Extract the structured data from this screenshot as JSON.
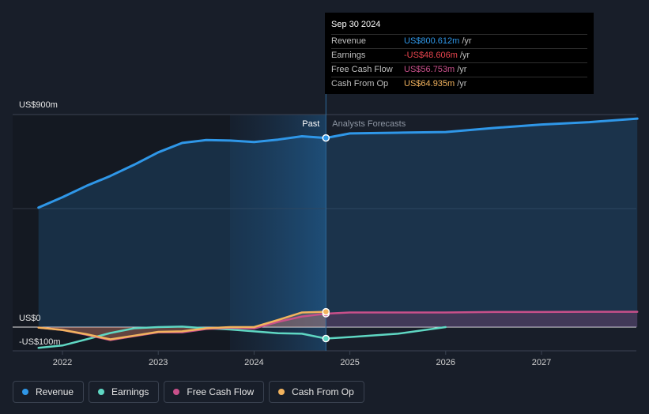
{
  "chart_data": {
    "type": "line",
    "y_axis_labels": [
      "US$900m",
      "US$0",
      "-US$100m"
    ],
    "ylim": [
      -100,
      900
    ],
    "x_tick_labels": [
      "2022",
      "2023",
      "2024",
      "2025",
      "2026",
      "2027"
    ],
    "x_tick_years": [
      2022,
      2023,
      2024,
      2025,
      2026,
      2027
    ],
    "divider_x": 2024.75,
    "past_label": "Past",
    "forecast_label": "Analysts Forecasts",
    "series": [
      {
        "name": "Revenue",
        "color": "#2f97e8",
        "fill": true,
        "points": [
          [
            2021.75,
            506
          ],
          [
            2022.0,
            550
          ],
          [
            2022.25,
            598
          ],
          [
            2022.5,
            640
          ],
          [
            2022.75,
            688
          ],
          [
            2023.0,
            740
          ],
          [
            2023.25,
            780
          ],
          [
            2023.5,
            792
          ],
          [
            2023.75,
            790
          ],
          [
            2024.0,
            784
          ],
          [
            2024.25,
            794
          ],
          [
            2024.5,
            808
          ],
          [
            2024.75,
            801
          ],
          [
            2025.0,
            820
          ],
          [
            2025.5,
            823
          ],
          [
            2026.0,
            826
          ],
          [
            2026.5,
            843
          ],
          [
            2027.0,
            858
          ],
          [
            2027.5,
            868
          ],
          [
            2028.0,
            883
          ]
        ]
      },
      {
        "name": "Earnings",
        "color": "#5fd7c3",
        "fill": false,
        "points": [
          [
            2021.75,
            -88
          ],
          [
            2022.0,
            -78
          ],
          [
            2022.25,
            -52
          ],
          [
            2022.5,
            -25
          ],
          [
            2022.75,
            -5
          ],
          [
            2023.0,
            0
          ],
          [
            2023.25,
            2
          ],
          [
            2023.5,
            -5
          ],
          [
            2023.75,
            -10
          ],
          [
            2024.0,
            -18
          ],
          [
            2024.25,
            -26
          ],
          [
            2024.5,
            -28
          ],
          [
            2024.75,
            -48.606
          ],
          [
            2025.0,
            -42
          ],
          [
            2025.5,
            -28
          ],
          [
            2026.0,
            0
          ]
        ]
      },
      {
        "name": "Free Cash Flow",
        "color": "#c8508a",
        "fill": true,
        "points": [
          [
            2021.75,
            -2
          ],
          [
            2022.0,
            -12
          ],
          [
            2022.25,
            -32
          ],
          [
            2022.5,
            -55
          ],
          [
            2022.75,
            -38
          ],
          [
            2023.0,
            -22
          ],
          [
            2023.25,
            -22
          ],
          [
            2023.5,
            -8
          ],
          [
            2023.75,
            -3
          ],
          [
            2024.0,
            -6
          ],
          [
            2024.25,
            22
          ],
          [
            2024.5,
            45
          ],
          [
            2024.75,
            56.753
          ],
          [
            2025.0,
            62
          ],
          [
            2025.5,
            62
          ],
          [
            2026.0,
            62
          ],
          [
            2026.5,
            64
          ],
          [
            2027.0,
            64
          ],
          [
            2027.5,
            65
          ],
          [
            2028.0,
            65
          ]
        ]
      },
      {
        "name": "Cash From Op",
        "color": "#f2b35e",
        "fill": true,
        "points": [
          [
            2021.75,
            -2
          ],
          [
            2022.0,
            -12
          ],
          [
            2022.25,
            -30
          ],
          [
            2022.5,
            -52
          ],
          [
            2022.75,
            -36
          ],
          [
            2023.0,
            -20
          ],
          [
            2023.25,
            -18
          ],
          [
            2023.5,
            -5
          ],
          [
            2023.75,
            0
          ],
          [
            2024.0,
            0
          ],
          [
            2024.25,
            30
          ],
          [
            2024.5,
            62
          ],
          [
            2024.75,
            64.935
          ]
        ]
      }
    ]
  },
  "tooltip": {
    "date": "Sep 30 2024",
    "rows": [
      {
        "label": "Revenue",
        "value": "US$800.612m",
        "unit": "/yr",
        "color": "#2f97e8"
      },
      {
        "label": "Earnings",
        "value": "-US$48.606m",
        "unit": "/yr",
        "color": "#e8454e"
      },
      {
        "label": "Free Cash Flow",
        "value": "US$56.753m",
        "unit": "/yr",
        "color": "#c8508a"
      },
      {
        "label": "Cash From Op",
        "value": "US$64.935m",
        "unit": "/yr",
        "color": "#f2b35e"
      }
    ]
  },
  "legend": [
    {
      "label": "Revenue",
      "color": "#2f97e8"
    },
    {
      "label": "Earnings",
      "color": "#5fd7c3"
    },
    {
      "label": "Free Cash Flow",
      "color": "#c8508a"
    },
    {
      "label": "Cash From Op",
      "color": "#f2b35e"
    }
  ]
}
